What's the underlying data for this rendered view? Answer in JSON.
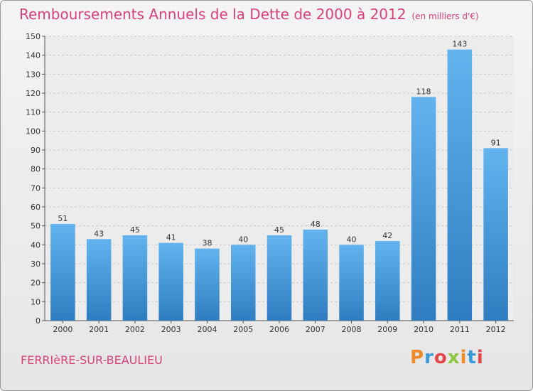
{
  "chart_data": {
    "type": "bar",
    "title": "Remboursements Annuels de la Dette de 2000 à 2012",
    "subtitle": "(en milliers d'€)",
    "categories": [
      "2000",
      "2001",
      "2002",
      "2003",
      "2004",
      "2005",
      "2006",
      "2007",
      "2008",
      "2009",
      "2010",
      "2011",
      "2012"
    ],
    "values": [
      51,
      43,
      45,
      41,
      38,
      40,
      45,
      48,
      40,
      42,
      118,
      143,
      91
    ],
    "xlabel": "",
    "ylabel": "",
    "ylim": [
      0,
      150
    ],
    "ytick_step": 10,
    "grid": true,
    "bar_color": "#4f9fe0"
  },
  "footer": {
    "commune": "FERRIèRE-SUR-BEAULIEU",
    "logo": "Proxiti"
  },
  "colors": {
    "title": "#d9417c",
    "logo_letters": [
      "#f0892a",
      "#3a9ad9",
      "#e8454a",
      "#8cc63f",
      "#f0892a",
      "#3a9ad9",
      "#e8454a"
    ]
  }
}
